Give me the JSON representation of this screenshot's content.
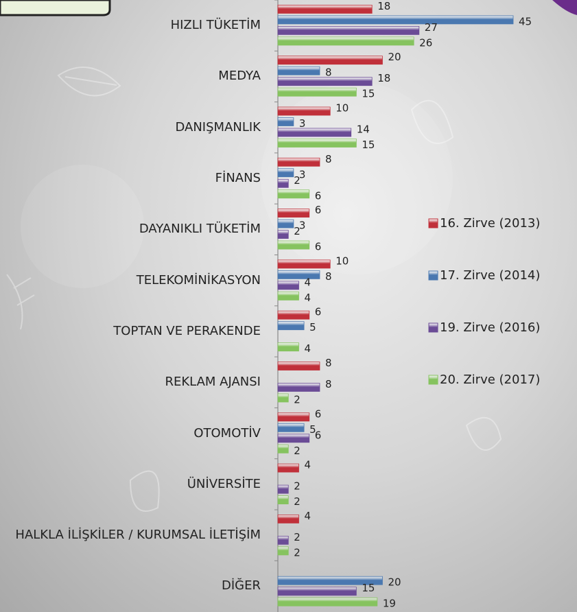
{
  "chart_data": {
    "type": "bar",
    "orientation": "horizontal",
    "legend": "right",
    "categories": [
      "HIZLI TÜKETİM",
      "MEDYA",
      "DANIŞMANLIK",
      "FİNANS",
      "DAYANIKLI TÜKETİM",
      "TELEKOMİNİKASYON",
      "TOPTAN VE PERAKENDE",
      "REKLAM AJANSI",
      "OTOMOTİV",
      "ÜNİVERSİTE",
      "HALKLA İLİŞKİLER / KURUMSAL İLETİŞİM",
      "DİĞER"
    ],
    "series": [
      {
        "name": "16. Zirve (2013)",
        "color": "#c0303a",
        "values": [
          18,
          20,
          10,
          8,
          6,
          10,
          6,
          8,
          6,
          4,
          4,
          null
        ]
      },
      {
        "name": "17. Zirve (2014)",
        "color": "#4a78b0",
        "values": [
          45,
          8,
          3,
          3,
          3,
          8,
          5,
          null,
          5,
          null,
          null,
          20
        ]
      },
      {
        "name": "19. Zirve (2016)",
        "color": "#6b4c96",
        "values": [
          27,
          18,
          14,
          2,
          2,
          4,
          null,
          8,
          6,
          2,
          2,
          15
        ]
      },
      {
        "name": "20. Zirve (2017)",
        "color": "#86c35f",
        "values": [
          26,
          15,
          15,
          6,
          6,
          4,
          4,
          2,
          2,
          2,
          2,
          19
        ]
      }
    ]
  }
}
